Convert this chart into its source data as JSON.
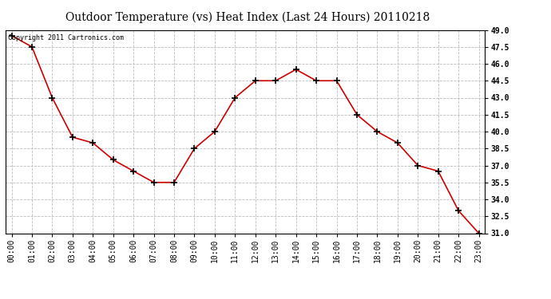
{
  "title": "Outdoor Temperature (vs) Heat Index (Last 24 Hours) 20110218",
  "copyright_text": "Copyright 2011 Cartronics.com",
  "x_labels": [
    "00:00",
    "01:00",
    "02:00",
    "03:00",
    "04:00",
    "05:00",
    "06:00",
    "07:00",
    "08:00",
    "09:00",
    "10:00",
    "11:00",
    "12:00",
    "13:00",
    "14:00",
    "15:00",
    "16:00",
    "17:00",
    "18:00",
    "19:00",
    "20:00",
    "21:00",
    "22:00",
    "23:00"
  ],
  "y_values": [
    48.5,
    47.5,
    43.0,
    39.5,
    39.0,
    37.5,
    36.5,
    35.5,
    35.5,
    38.5,
    40.0,
    43.0,
    44.5,
    44.5,
    45.5,
    44.5,
    44.5,
    41.5,
    40.0,
    39.0,
    37.0,
    36.5,
    33.0,
    31.0
  ],
  "line_color": "#cc0000",
  "marker": "+",
  "marker_size": 6,
  "marker_color": "#000000",
  "background_color": "#ffffff",
  "plot_bg_color": "#ffffff",
  "grid_color": "#bbbbbb",
  "grid_style": "--",
  "ylim": [
    31.0,
    49.0
  ],
  "ytick_values": [
    31.0,
    32.5,
    34.0,
    35.5,
    37.0,
    38.5,
    40.0,
    41.5,
    43.0,
    44.5,
    46.0,
    47.5,
    49.0
  ],
  "title_fontsize": 10,
  "tick_fontsize": 7,
  "copyright_fontsize": 6
}
